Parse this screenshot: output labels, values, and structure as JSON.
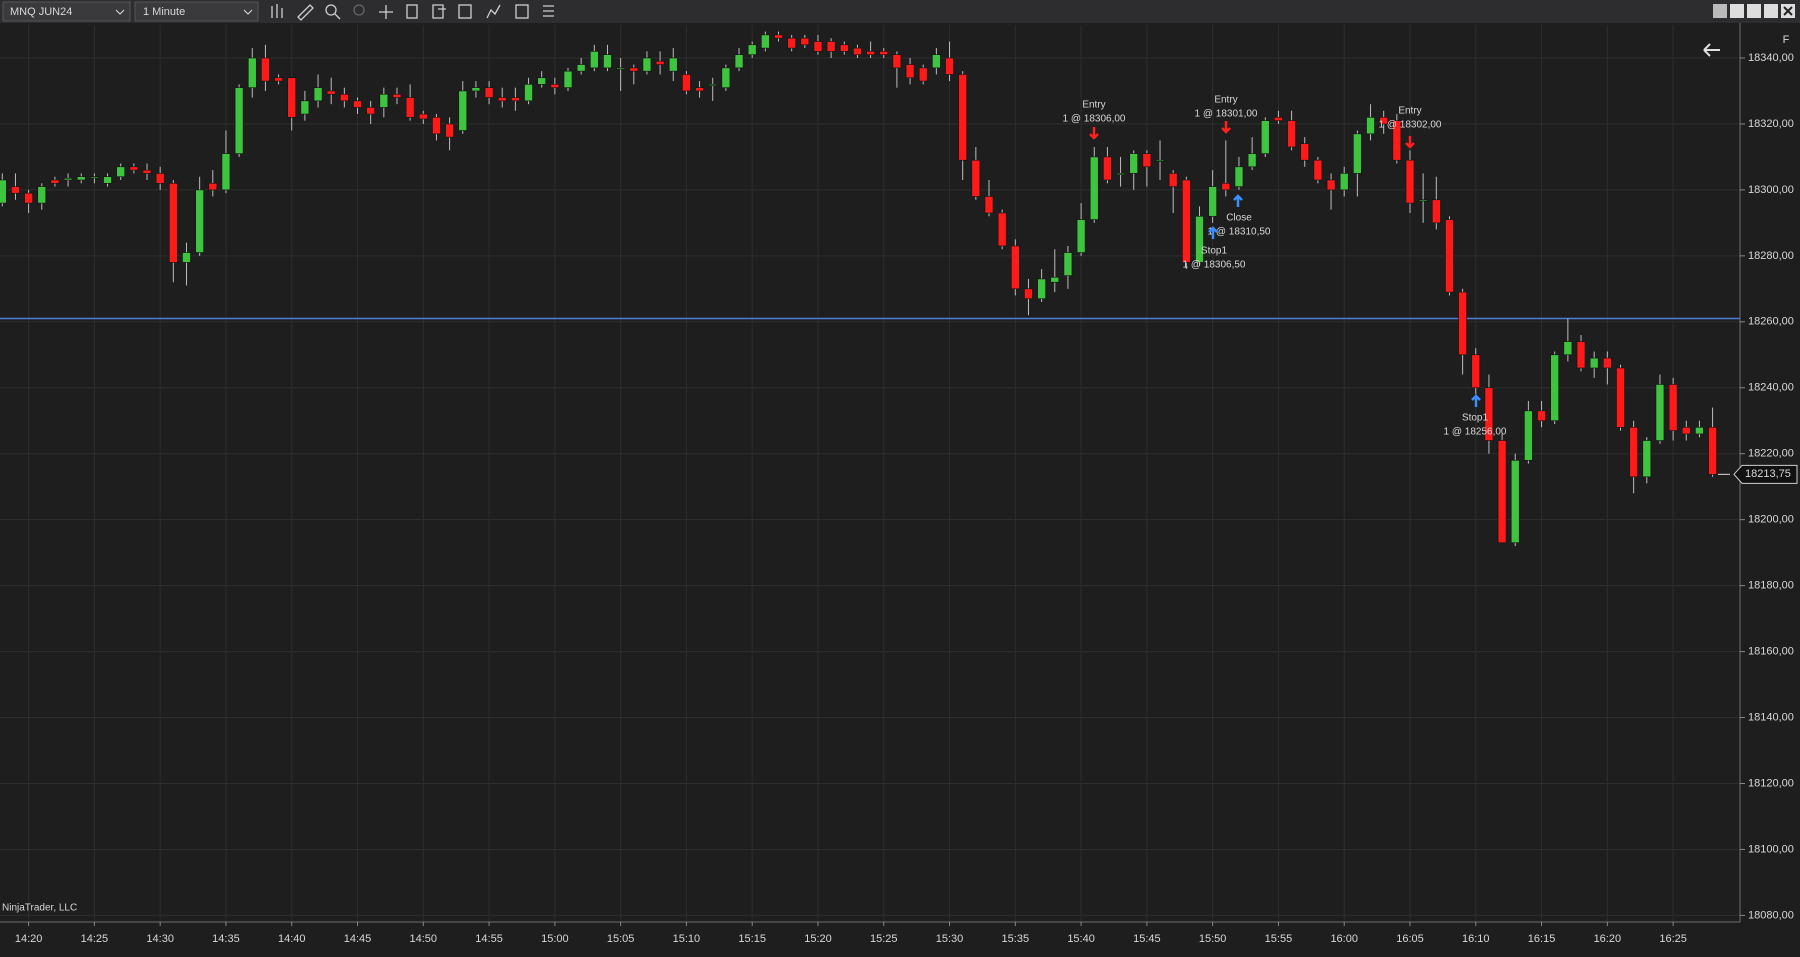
{
  "toolbar": {
    "instrument": "MNQ JUN24",
    "interval": "1 Minute"
  },
  "watermark": "NinjaTrader, LLC",
  "panel_flag": "F",
  "chart_data": {
    "type": "candlestick",
    "up_color": "#3ec43e",
    "down_color": "#ff1a1a",
    "grid": true,
    "categories": [
      null,
      null,
      "14:20",
      null,
      null,
      null,
      null,
      "14:25",
      null,
      null,
      null,
      null,
      "14:30",
      null,
      null,
      null,
      null,
      "14:35",
      null,
      null,
      null,
      null,
      "14:40",
      null,
      null,
      null,
      null,
      "14:45",
      null,
      null,
      null,
      null,
      "14:50",
      null,
      null,
      null,
      null,
      "14:55",
      null,
      null,
      null,
      null,
      "15:00",
      null,
      null,
      null,
      null,
      "15:05",
      null,
      null,
      null,
      null,
      "15:10",
      null,
      null,
      null,
      null,
      "15:15",
      null,
      null,
      null,
      null,
      "15:20",
      null,
      null,
      null,
      null,
      "15:25",
      null,
      null,
      null,
      null,
      "15:30",
      null,
      null,
      null,
      null,
      "15:35",
      null,
      null,
      null,
      null,
      "15:40",
      null,
      null,
      null,
      null,
      "15:45",
      null,
      null,
      null,
      null,
      "15:50",
      null,
      null,
      null,
      null,
      "15:55",
      null,
      null,
      null,
      null,
      "16:00",
      null,
      null,
      null,
      null,
      "16:05",
      null,
      null,
      null,
      null,
      "16:10",
      null,
      null,
      null,
      null,
      "16:15",
      null,
      null,
      null,
      null,
      "16:20",
      null,
      null,
      null,
      null,
      "16:25",
      null,
      null,
      null
    ],
    "open": [
      18296,
      18301,
      18299,
      18296,
      18303,
      18303,
      18303,
      18304,
      18302,
      18304,
      18307,
      18306,
      18305,
      18302,
      18278,
      18281,
      18302,
      18300,
      18311,
      18331,
      18340,
      18334,
      18334,
      18323,
      18327,
      18330,
      18329,
      18327,
      18325,
      18325,
      18329,
      18328,
      18323,
      18322,
      18320,
      18318,
      18330,
      18331,
      18328,
      18328,
      18327,
      18332,
      18332,
      18331,
      18336,
      18337,
      18337,
      18337,
      18337,
      18336,
      18339,
      18336,
      18335,
      18331,
      18332,
      18331,
      18337,
      18341,
      18343,
      18347,
      18346,
      18346,
      18345,
      18345,
      18344,
      18343,
      18342,
      18342,
      18341,
      18338,
      18337,
      18337,
      18340,
      18335,
      18309,
      18298,
      18293,
      18283,
      18270,
      18267,
      18272,
      18274,
      18281,
      18291,
      18310,
      18305,
      18305,
      18311,
      18309,
      18305,
      18303,
      18278,
      18292,
      18302,
      18301,
      18307,
      18311,
      18322,
      18321,
      18314,
      18309,
      18303,
      18300,
      18305,
      18317,
      18322,
      18321,
      18309,
      18297,
      18297,
      18291,
      18269,
      18250,
      18240,
      18224,
      18193,
      18218,
      18233,
      18230,
      18250,
      18254,
      18246,
      18249,
      18246,
      18228,
      18213,
      18224,
      18241,
      18228,
      18226,
      18228
    ],
    "high": [
      18305,
      18305,
      18300,
      18302,
      18304,
      18305,
      18305,
      18305,
      18305,
      18308,
      18308,
      18308,
      18307,
      18303,
      18284,
      18304,
      18306,
      18318,
      18332,
      18343,
      18344,
      18335,
      18334,
      18330,
      18335,
      18334,
      18331,
      18328,
      18327,
      18331,
      18331,
      18332,
      18324,
      18323,
      18322,
      18333,
      18333,
      18333,
      18331,
      18331,
      18334,
      18336,
      18334,
      18337,
      18340,
      18344,
      18344,
      18340,
      18338,
      18342,
      18342,
      18343,
      18336,
      18333,
      18334,
      18338,
      18343,
      18345,
      18348,
      18348,
      18347,
      18347,
      18347,
      18346,
      18345,
      18344,
      18345,
      18343,
      18342,
      18340,
      18338,
      18343,
      18345,
      18336,
      18313,
      18303,
      18294,
      18285,
      18273,
      18276,
      18282,
      18283,
      18296,
      18313,
      18313,
      18310,
      18312,
      18312,
      18315,
      18306,
      18304,
      18295,
      18306,
      18315,
      18310,
      18316,
      18322,
      18324,
      18324,
      18316,
      18310,
      18305,
      18307,
      18318,
      18326,
      18324,
      18323,
      18312,
      18305,
      18304,
      18292,
      18270,
      18252,
      18244,
      18226,
      18220,
      18236,
      18236,
      18251,
      18261,
      18256,
      18251,
      18251,
      18247,
      18230,
      18225,
      18244,
      18243,
      18230,
      18230,
      18234
    ],
    "low": [
      18295,
      18297,
      18293,
      18294,
      18301,
      18301,
      18302,
      18302,
      18301,
      18303,
      18305,
      18303,
      18300,
      18272,
      18271,
      18280,
      18298,
      18299,
      18310,
      18328,
      18330,
      18332,
      18318,
      18321,
      18325,
      18326,
      18325,
      18323,
      18320,
      18322,
      18326,
      18321,
      18320,
      18315,
      18312,
      18317,
      18328,
      18326,
      18325,
      18324,
      18326,
      18331,
      18329,
      18330,
      18335,
      18336,
      18336,
      18330,
      18332,
      18335,
      18335,
      18333,
      18329,
      18328,
      18327,
      18330,
      18336,
      18340,
      18342,
      18345,
      18342,
      18343,
      18341,
      18340,
      18341,
      18340,
      18340,
      18340,
      18331,
      18332,
      18332,
      18335,
      18333,
      18303,
      18297,
      18292,
      18282,
      18268,
      18262,
      18266,
      18269,
      18270,
      18280,
      18290,
      18302,
      18301,
      18300,
      18301,
      18303,
      18293,
      18276,
      18277,
      18290,
      18298,
      18300,
      18306,
      18310,
      18320,
      18312,
      18307,
      18302,
      18294,
      18298,
      18298,
      18315,
      18317,
      18308,
      18293,
      18290,
      18288,
      18268,
      18244,
      18238,
      18220,
      18193,
      18192,
      18217,
      18228,
      18229,
      18248,
      18245,
      18243,
      18241,
      18227,
      18208,
      18211,
      18223,
      18224,
      18224,
      18225,
      18213
    ],
    "close": [
      18303,
      18299,
      18296,
      18301,
      18302,
      18303.5,
      18304,
      18304,
      18304,
      18307,
      18306,
      18305,
      18302,
      18278,
      18281,
      18300,
      18300,
      18311,
      18331,
      18340,
      18333,
      18333,
      18322,
      18327,
      18331,
      18329,
      18327,
      18325,
      18323,
      18329,
      18328,
      18322,
      18321.5,
      18317,
      18316,
      18330,
      18331,
      18328,
      18327,
      18327,
      18332,
      18334,
      18331,
      18336,
      18338,
      18342,
      18341,
      18337,
      18336,
      18340,
      18338,
      18340,
      18330,
      18330,
      18332,
      18337,
      18341,
      18344,
      18347,
      18346,
      18343,
      18344,
      18342,
      18342,
      18342,
      18341,
      18341,
      18341,
      18337,
      18334,
      18333,
      18341,
      18335,
      18309,
      18298,
      18293,
      18283,
      18270,
      18267,
      18273,
      18273.5,
      18281,
      18291,
      18310,
      18303,
      18305,
      18311,
      18307,
      18309,
      18301,
      18278,
      18292,
      18301,
      18300,
      18307,
      18311,
      18321,
      18321,
      18313,
      18309,
      18303,
      18300,
      18305,
      18317,
      18322,
      18320,
      18309,
      18296,
      18297,
      18290,
      18269,
      18250,
      18240,
      18224,
      18193,
      18218,
      18233,
      18230,
      18250,
      18254,
      18246,
      18249,
      18246,
      18228,
      18213,
      18224,
      18241,
      18227,
      18226,
      18228,
      18213.75
    ],
    "ylim": [
      18078,
      18350
    ],
    "yticks": [
      {
        "value": 18080,
        "label": "18080,00"
      },
      {
        "value": 18100,
        "label": "18100,00"
      },
      {
        "value": 18120,
        "label": "18120,00"
      },
      {
        "value": 18140,
        "label": "18140,00"
      },
      {
        "value": 18160,
        "label": "18160,00"
      },
      {
        "value": 18180,
        "label": "18180,00"
      },
      {
        "value": 18200,
        "label": "18200,00"
      },
      {
        "value": 18220,
        "label": "18220,00"
      },
      {
        "value": 18240,
        "label": "18240,00"
      },
      {
        "value": 18260,
        "label": "18260,00"
      },
      {
        "value": 18280,
        "label": "18280,00"
      },
      {
        "value": 18300,
        "label": "18300,00"
      },
      {
        "value": 18320,
        "label": "18320,00"
      },
      {
        "value": 18340,
        "label": "18340,00"
      }
    ],
    "horizontal_line": {
      "value": 18261,
      "color": "#4a7fd8"
    },
    "last_price": {
      "value": 18213.75,
      "label": "18213,75"
    },
    "executions": [
      {
        "label": "Entry",
        "detail": "1 @ 18306,00"
      },
      {
        "label": "Entry",
        "detail": "1 @ 18301,00"
      },
      {
        "label": "Close",
        "detail": "1 @ 18310,50"
      },
      {
        "label": "Stop1",
        "detail": "1 @ 18306,50"
      },
      {
        "label": "Entry",
        "detail": "1 @ 18302,00"
      },
      {
        "label": "Stop1",
        "detail": "1 @ 18256,00"
      }
    ]
  }
}
